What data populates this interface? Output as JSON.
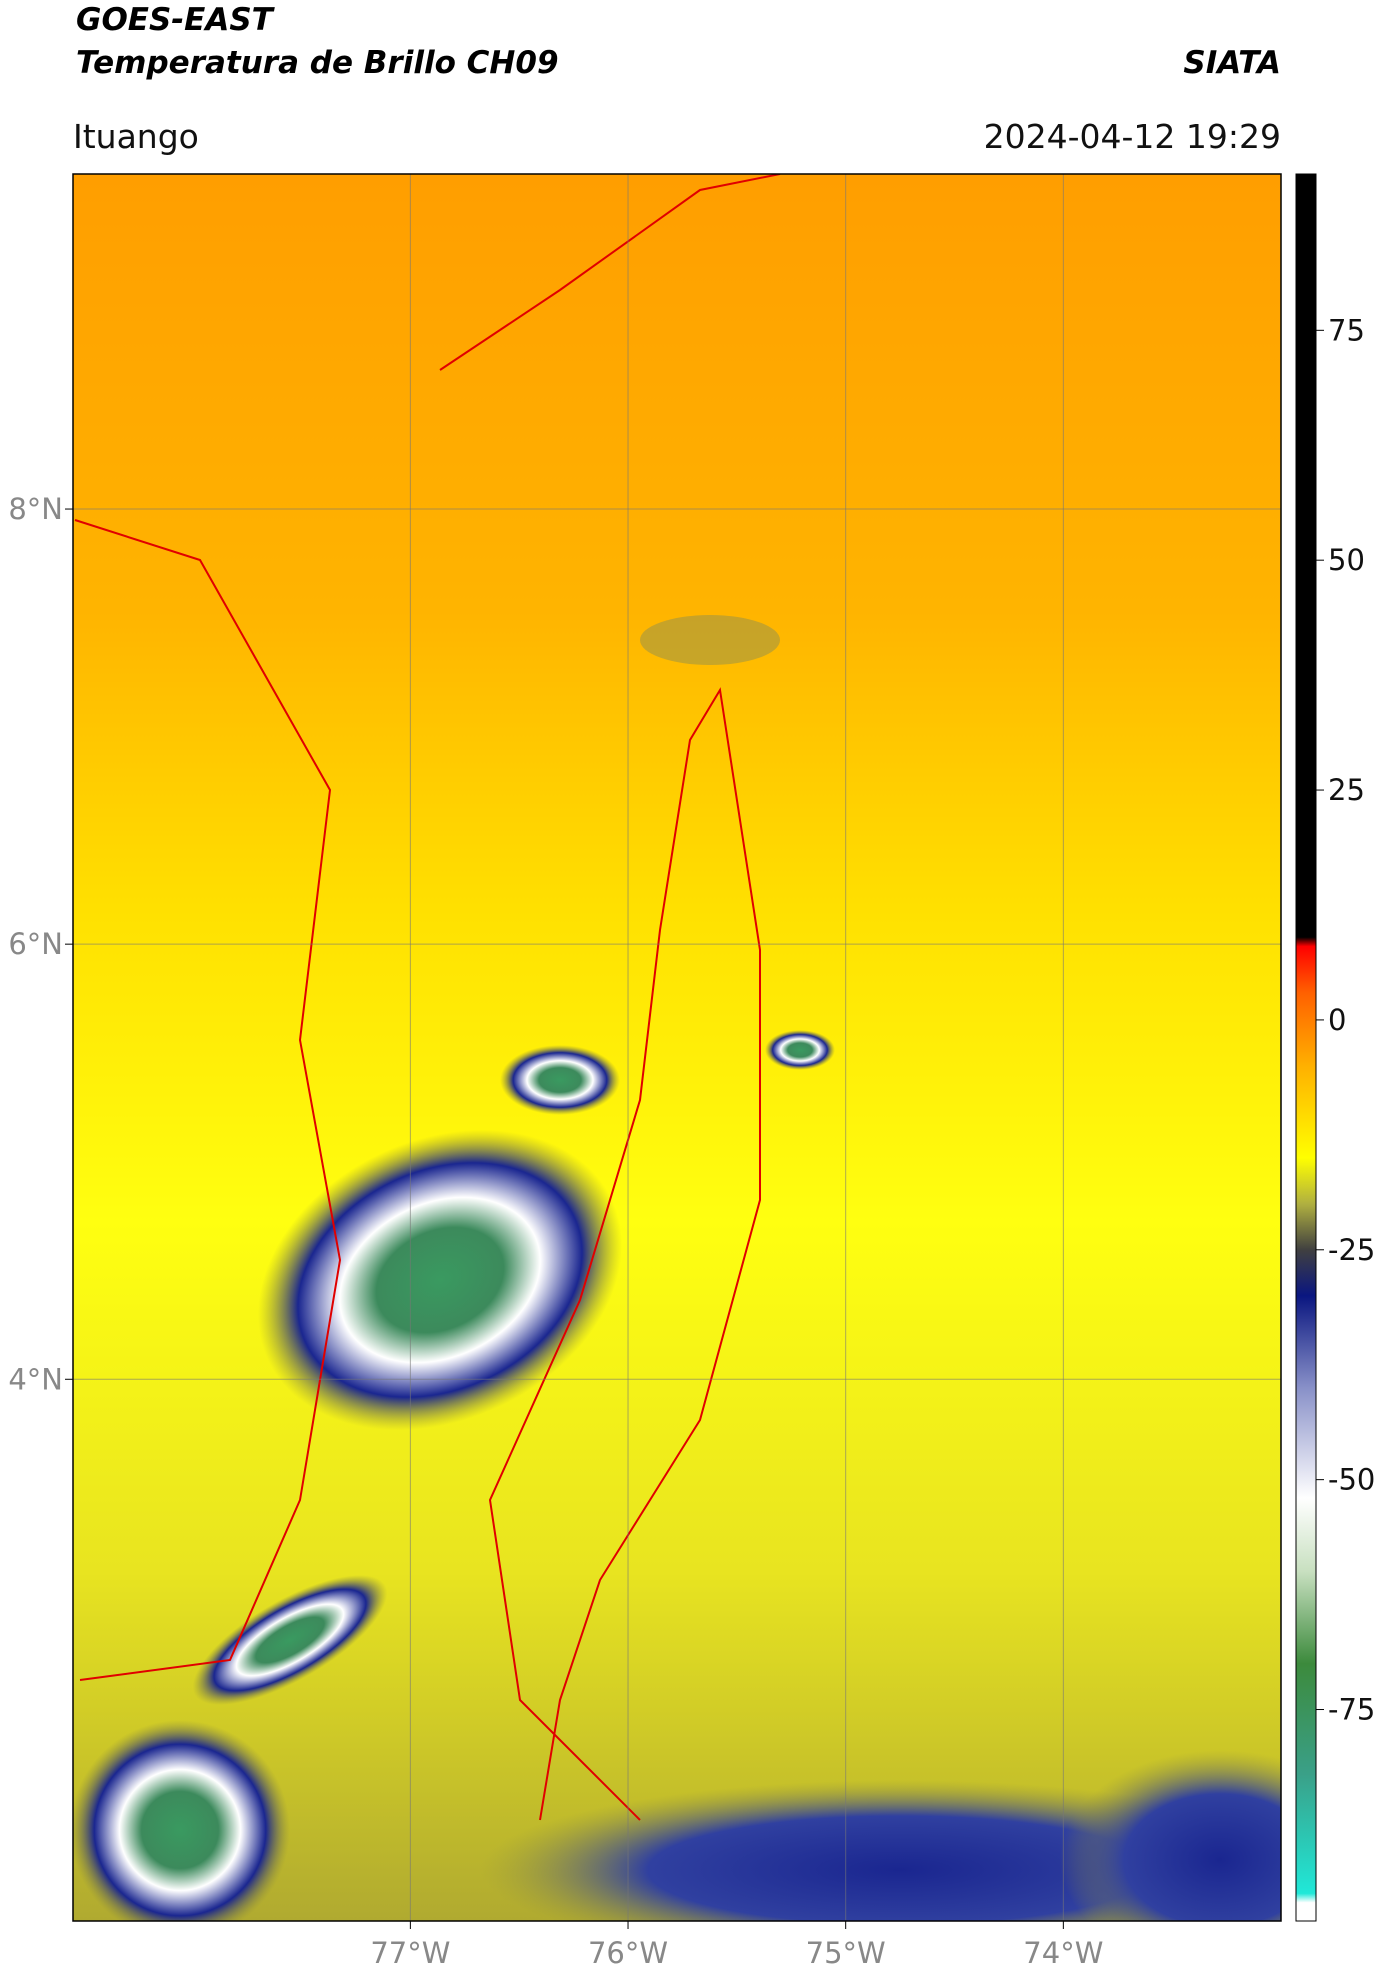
{
  "header": {
    "title_line1": "GOES-EAST",
    "title_line2": "Temperatura de Brillo CH09",
    "brand": "SIATA",
    "location": "Ituango",
    "timestamp": "2024-04-12 19:29"
  },
  "map": {
    "xlim": [
      -78.55,
      -73.0
    ],
    "ylim": [
      1.51,
      9.54
    ],
    "xticks": [
      {
        "value": -77,
        "label": "77°W"
      },
      {
        "value": -76,
        "label": "76°W"
      },
      {
        "value": -75,
        "label": "75°W"
      },
      {
        "value": -74,
        "label": "74°W"
      }
    ],
    "yticks": [
      {
        "value": 4,
        "label": "4°N"
      },
      {
        "value": 6,
        "label": "6°N"
      },
      {
        "value": 8,
        "label": "8°N"
      }
    ],
    "grid": true
  },
  "colorbar": {
    "lim": [
      -98,
      92
    ],
    "ticks": [
      -75,
      -50,
      -25,
      0,
      25,
      50,
      75
    ],
    "stops": [
      {
        "value": -98,
        "color": "#ffffff"
      },
      {
        "value": -96,
        "color": "#ffffff"
      },
      {
        "value": -95,
        "color": "#20e8d8"
      },
      {
        "value": -82,
        "color": "#3aa088"
      },
      {
        "value": -70,
        "color": "#3c8a3c"
      },
      {
        "value": -60,
        "color": "#c8e0c0"
      },
      {
        "value": -52,
        "color": "#ffffff"
      },
      {
        "value": -40,
        "color": "#8890c8"
      },
      {
        "value": -30,
        "color": "#0a1680"
      },
      {
        "value": -25,
        "color": "#404040"
      },
      {
        "value": -20,
        "color": "#b0b040"
      },
      {
        "value": -15,
        "color": "#ffff00"
      },
      {
        "value": -5,
        "color": "#ffb000"
      },
      {
        "value": 3,
        "color": "#ff6000"
      },
      {
        "value": 8,
        "color": "#ff0000"
      },
      {
        "value": 9,
        "color": "#000000"
      },
      {
        "value": 92,
        "color": "#000000"
      }
    ]
  }
}
